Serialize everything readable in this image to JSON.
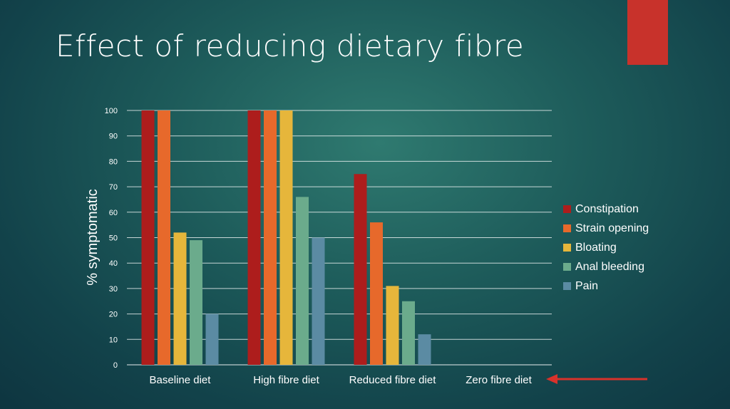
{
  "slide": {
    "title": "Effect of reducing dietary fibre"
  },
  "colors": {
    "Constipation": "#ad1d1c",
    "Strain opening": "#e7692b",
    "Bloating": "#e6b63b",
    "Anal bleeding": "#6bab8c",
    "Pain": "#5b8ba3",
    "accent": "#c8322b",
    "gridline": "#ffffff"
  },
  "chart_data": {
    "type": "bar",
    "title": "",
    "xlabel": "",
    "ylabel": "% symptomatic",
    "ylim": [
      0,
      100
    ],
    "yticks": [
      0,
      10,
      20,
      30,
      40,
      50,
      60,
      70,
      80,
      90,
      100
    ],
    "grid": true,
    "legend": "right",
    "categories": [
      "Baseline diet",
      "High fibre diet",
      "Reduced fibre diet",
      "Zero fibre diet"
    ],
    "series": [
      {
        "name": "Constipation",
        "values": [
          100,
          100,
          75,
          0
        ]
      },
      {
        "name": "Strain opening",
        "values": [
          100,
          100,
          56,
          0
        ]
      },
      {
        "name": "Bloating",
        "values": [
          52,
          100,
          31,
          0
        ]
      },
      {
        "name": "Anal bleeding",
        "values": [
          49,
          66,
          25,
          0
        ]
      },
      {
        "name": "Pain",
        "values": [
          20,
          50,
          12,
          0
        ]
      }
    ],
    "annotations": [
      {
        "type": "arrow",
        "target": "Zero fibre diet",
        "color": "#d8322b"
      }
    ]
  }
}
